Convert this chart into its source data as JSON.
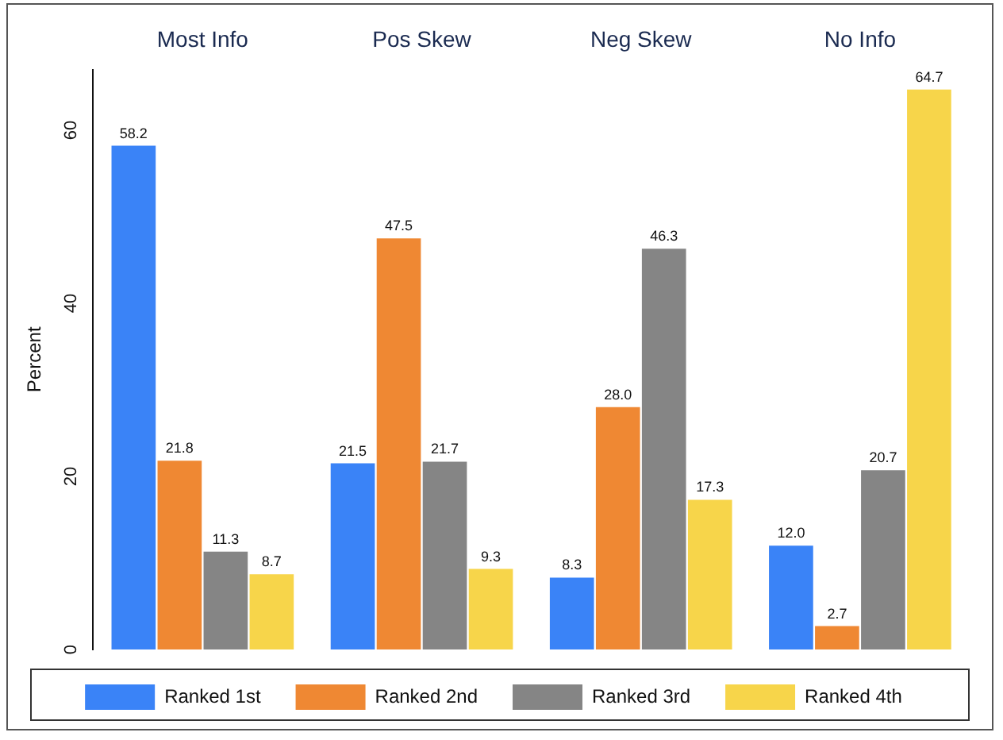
{
  "chart_data": {
    "type": "bar",
    "ylabel": "Percent",
    "categories": [
      "Most Info",
      "Pos Skew",
      "Neg Skew",
      "No Info"
    ],
    "series": [
      {
        "name": "Ranked 1st",
        "color": "#3a83f7",
        "values": [
          58.2,
          21.5,
          8.3,
          12.0
        ]
      },
      {
        "name": "Ranked 2nd",
        "color": "#ef8833",
        "values": [
          21.8,
          47.5,
          28.0,
          2.7
        ]
      },
      {
        "name": "Ranked 3rd",
        "color": "#858585",
        "values": [
          11.3,
          21.7,
          46.3,
          20.7
        ]
      },
      {
        "name": "Ranked 4th",
        "color": "#f7d54a",
        "values": [
          8.7,
          9.3,
          17.3,
          64.7
        ]
      }
    ],
    "value_labels": [
      [
        "58.2",
        "21.5",
        "8.3",
        "12.0"
      ],
      [
        "21.8",
        "47.5",
        "28.0",
        "2.7"
      ],
      [
        "11.3",
        "21.7",
        "46.3",
        "20.7"
      ],
      [
        "8.7",
        "9.3",
        "17.3",
        "64.7"
      ]
    ],
    "ylim": [
      0,
      67
    ],
    "yticks": [
      0,
      20,
      40,
      60
    ],
    "grid": false,
    "legend": "bottom"
  }
}
